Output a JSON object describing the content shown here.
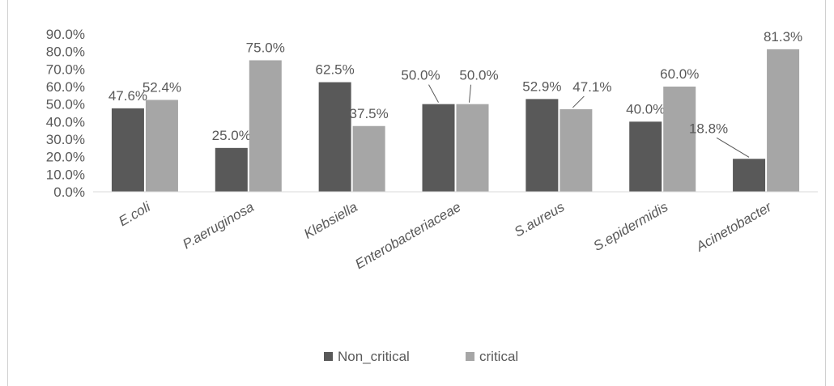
{
  "chart_data": {
    "type": "bar",
    "categories": [
      "E.coli",
      "P.aeruginosa",
      "Klebsiella",
      "Enterobacteriaceae",
      "S.aureus",
      "S.epidermidis",
      "Acinetobacter"
    ],
    "series": [
      {
        "name": "Non_critical",
        "color": "#595959",
        "values": [
          47.6,
          25.0,
          62.5,
          50.0,
          52.9,
          40.0,
          18.8
        ],
        "labels": [
          "47.6%",
          "25.0%",
          "62.5%",
          "50.0%",
          "52.9%",
          "40.0%",
          "18.8%"
        ]
      },
      {
        "name": "critical",
        "color": "#a6a6a6",
        "values": [
          52.4,
          75.0,
          37.5,
          50.0,
          47.1,
          60.0,
          81.3
        ],
        "labels": [
          "52.4%",
          "75.0%",
          "37.5%",
          "50.0%",
          "47.1%",
          "60.0%",
          "81.3%"
        ]
      }
    ],
    "yticks": [
      "0.0%",
      "10.0%",
      "20.0%",
      "30.0%",
      "40.0%",
      "50.0%",
      "60.0%",
      "70.0%",
      "80.0%",
      "90.0%"
    ],
    "ylim": [
      0,
      90
    ],
    "grid": false,
    "legend_position": "bottom",
    "title": "",
    "xlabel": "",
    "ylabel": ""
  }
}
